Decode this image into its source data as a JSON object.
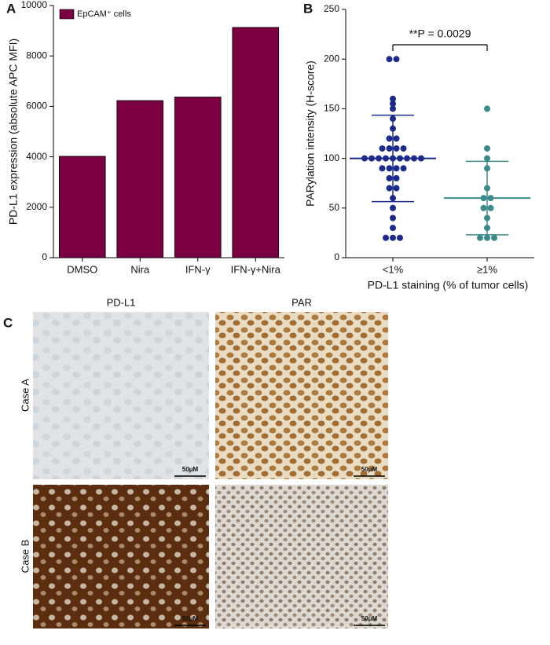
{
  "chart_data": [
    {
      "type": "bar",
      "panel_label": "A",
      "ylabel": "PD-L1 expression (absolute APC MFI)",
      "categories": [
        "DMSO",
        "Nira",
        "IFN-γ",
        "IFN-γ+Nira"
      ],
      "series": [
        {
          "name": "EpCAM⁺ cells",
          "color": "#7b0041",
          "values": [
            4020,
            6230,
            6370,
            9130
          ]
        }
      ],
      "ylim": [
        0,
        10000
      ],
      "yticks": [
        0,
        2000,
        4000,
        6000,
        8000,
        10000
      ],
      "grid": false
    },
    {
      "type": "dot",
      "panel_label": "B",
      "ylabel": "PARylation intensity (H-score)",
      "xlabel": "PD-L1 staining (% of tumor cells)",
      "annotation": "**P = 0.0029",
      "categories": [
        "<1%",
        "≥1%"
      ],
      "groups": [
        {
          "color": "#1c2a8c",
          "mean": 100,
          "sd": 43.5,
          "values": [
            200,
            200,
            160,
            155,
            150,
            140,
            130,
            120,
            120,
            110,
            110,
            110,
            110,
            100,
            100,
            100,
            100,
            100,
            100,
            100,
            100,
            100,
            90,
            90,
            90,
            90,
            80,
            80,
            70,
            70,
            60,
            50,
            40,
            30,
            20,
            20,
            20
          ]
        },
        {
          "color": "#3a8a8a",
          "mean": 60,
          "sd": 37,
          "values": [
            150,
            110,
            100,
            90,
            70,
            60,
            60,
            50,
            50,
            40,
            30,
            20,
            20,
            20
          ]
        }
      ],
      "ylim": [
        0,
        250
      ],
      "yticks": [
        0,
        50,
        100,
        150,
        200,
        250
      ],
      "grid": false
    }
  ],
  "panel_c": {
    "panel_label": "C",
    "columns": [
      "PD-L1",
      "PAR"
    ],
    "rows": [
      "Case A",
      "Case B"
    ],
    "scale_bar": "50μM"
  }
}
